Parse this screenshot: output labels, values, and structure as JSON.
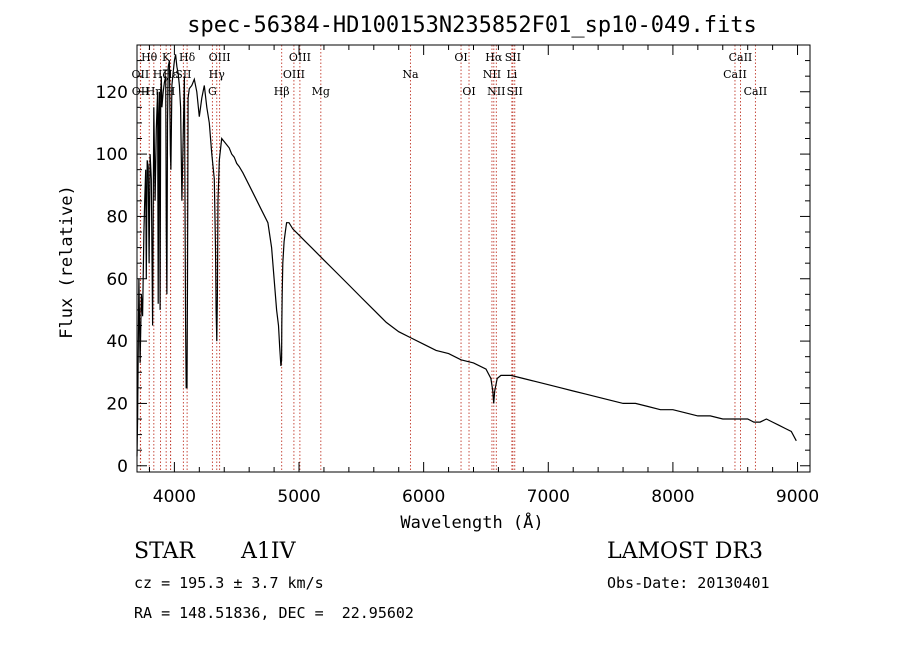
{
  "chart_data": {
    "type": "line",
    "title": "spec-56384-HD100153N235852F01_sp10-049.fits",
    "xlabel": "Wavelength (Å)",
    "ylabel": "Flux (relative)",
    "xlim": [
      3700,
      9100
    ],
    "ylim": [
      -2,
      135
    ],
    "xticks": [
      4000,
      5000,
      6000,
      7000,
      8000,
      9000
    ],
    "yticks": [
      0,
      20,
      40,
      60,
      80,
      100,
      120
    ],
    "spectrum": {
      "x": [
        3700,
        3705,
        3715,
        3725,
        3735,
        3745,
        3755,
        3762,
        3770,
        3775,
        3782,
        3790,
        3797,
        3805,
        3815,
        3825,
        3835,
        3845,
        3855,
        3865,
        3870,
        3875,
        3880,
        3885,
        3890,
        3895,
        3900,
        3910,
        3920,
        3930,
        3935,
        3940,
        3945,
        3950,
        3960,
        3965,
        3968,
        3972,
        3980,
        3990,
        4000,
        4010,
        4020,
        4030,
        4040,
        4050,
        4060,
        4080,
        4090,
        4095,
        4101,
        4105,
        4110,
        4120,
        4140,
        4160,
        4180,
        4200,
        4220,
        4240,
        4260,
        4280,
        4300,
        4320,
        4330,
        4335,
        4340,
        4345,
        4350,
        4360,
        4380,
        4400,
        4420,
        4440,
        4460,
        4480,
        4500,
        4520,
        4550,
        4600,
        4650,
        4700,
        4750,
        4780,
        4800,
        4820,
        4835,
        4845,
        4855,
        4860,
        4862,
        4865,
        4870,
        4880,
        4890,
        4900,
        4920,
        4950,
        5000,
        5050,
        5100,
        5150,
        5200,
        5300,
        5400,
        5500,
        5600,
        5700,
        5800,
        5900,
        6000,
        6100,
        6200,
        6300,
        6400,
        6500,
        6540,
        6555,
        6562,
        6570,
        6590,
        6620,
        6700,
        6800,
        6900,
        7000,
        7100,
        7200,
        7300,
        7400,
        7500,
        7600,
        7700,
        7800,
        7900,
        8000,
        8100,
        8200,
        8300,
        8400,
        8500,
        8600,
        8650,
        8700,
        8750,
        8800,
        8850,
        8900,
        8950,
        8990
      ],
      "y": [
        3,
        15,
        60,
        33,
        55,
        48,
        75,
        85,
        95,
        60,
        98,
        96,
        65,
        100,
        92,
        45,
        115,
        85,
        108,
        120,
        52,
        112,
        120,
        50,
        118,
        125,
        115,
        120,
        123,
        125,
        75,
        55,
        110,
        128,
        130,
        112,
        100,
        95,
        122,
        126,
        130,
        132,
        128,
        126,
        122,
        115,
        85,
        125,
        45,
        25,
        25,
        60,
        118,
        121,
        122,
        124,
        120,
        112,
        118,
        122,
        115,
        110,
        100,
        92,
        70,
        50,
        40,
        55,
        85,
        98,
        105,
        104,
        103,
        102,
        100,
        99,
        97,
        96,
        94,
        90,
        86,
        82,
        78,
        70,
        60,
        50,
        45,
        38,
        32,
        34,
        45,
        55,
        65,
        72,
        75,
        78,
        78,
        76,
        74,
        72,
        70,
        68,
        66,
        62,
        58,
        54,
        50,
        46,
        43,
        41,
        39,
        37,
        36,
        34,
        33,
        31,
        28,
        24,
        20,
        24,
        28,
        29,
        29,
        28,
        27,
        26,
        25,
        24,
        23,
        22,
        21,
        20,
        20,
        19,
        18,
        18,
        17,
        16,
        16,
        15,
        15,
        15,
        14,
        14,
        15,
        14,
        13,
        12,
        11,
        8
      ]
    },
    "lines": [
      {
        "label": "Hθ",
        "wl": 3798,
        "row": 1
      },
      {
        "label": "OII",
        "wl": 3727,
        "row": 2
      },
      {
        "label": "OII",
        "wl": 3729,
        "row": 3
      },
      {
        "label": "Hη",
        "wl": 3835,
        "row": 3
      },
      {
        "label": "Hζ",
        "wl": 3889,
        "row": 2
      },
      {
        "label": "K",
        "wl": 3934,
        "row": 1
      },
      {
        "label": "H",
        "wl": 3969,
        "row": 3
      },
      {
        "label": "Hε",
        "wl": 3970,
        "row": 2
      },
      {
        "label": "SII",
        "wl": 4072,
        "row": 2
      },
      {
        "label": "Hδ",
        "wl": 4102,
        "row": 1
      },
      {
        "label": "OIII",
        "wl": 4363,
        "row": 1
      },
      {
        "label": "Hγ",
        "wl": 4340,
        "row": 2
      },
      {
        "label": "G",
        "wl": 4305,
        "row": 3
      },
      {
        "label": "Hβ",
        "wl": 4861,
        "row": 3
      },
      {
        "label": "OIII",
        "wl": 4959,
        "row": 2
      },
      {
        "label": "OIII",
        "wl": 5007,
        "row": 1
      },
      {
        "label": "Mg",
        "wl": 5175,
        "row": 3
      },
      {
        "label": "Na",
        "wl": 5894,
        "row": 2
      },
      {
        "label": "OI",
        "wl": 6300,
        "row": 1
      },
      {
        "label": "OI",
        "wl": 6364,
        "row": 3
      },
      {
        "label": "Hα",
        "wl": 6563,
        "row": 1
      },
      {
        "label": "NII",
        "wl": 6548,
        "row": 2
      },
      {
        "label": "NII",
        "wl": 6583,
        "row": 3
      },
      {
        "label": "SII",
        "wl": 6716,
        "row": 1
      },
      {
        "label": "Li",
        "wl": 6708,
        "row": 2
      },
      {
        "label": "SII",
        "wl": 6731,
        "row": 3
      },
      {
        "label": "CaII",
        "wl": 8542,
        "row": 1
      },
      {
        "label": "CaII",
        "wl": 8498,
        "row": 2
      },
      {
        "label": "CaII",
        "wl": 8662,
        "row": 3
      }
    ]
  },
  "info": {
    "object_class": "STAR",
    "subclass": "A1IV",
    "survey": "LAMOST DR3",
    "cz": "cz = 195.3 ± 3.7 km/s",
    "obs_date": "Obs-Date: 20130401",
    "coords": "RA = 148.51836, DEC =  22.95602"
  }
}
